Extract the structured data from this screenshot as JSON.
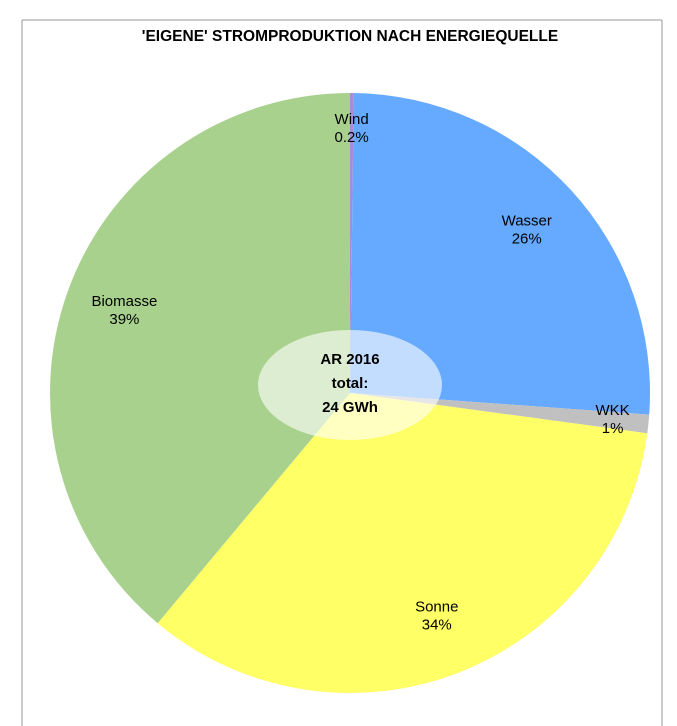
{
  "chart_data": {
    "type": "pie",
    "title": "'EIGENE' STROMPRODUKTION NACH ENERGIEQUELLE",
    "categories": [
      "Wind",
      "Wasser",
      "WKK",
      "Sonne",
      "Biomasse"
    ],
    "values": [
      0.2,
      26,
      1,
      34,
      39
    ],
    "value_labels": [
      "0.2%",
      "26%",
      "1%",
      "34%",
      "39%"
    ],
    "colors": [
      "#a98bd6",
      "#66aaff",
      "#c0c0c0",
      "#ffff66",
      "#a9d18e"
    ],
    "annotation": [
      "AR 2016",
      "total:",
      "24 GWh"
    ]
  }
}
